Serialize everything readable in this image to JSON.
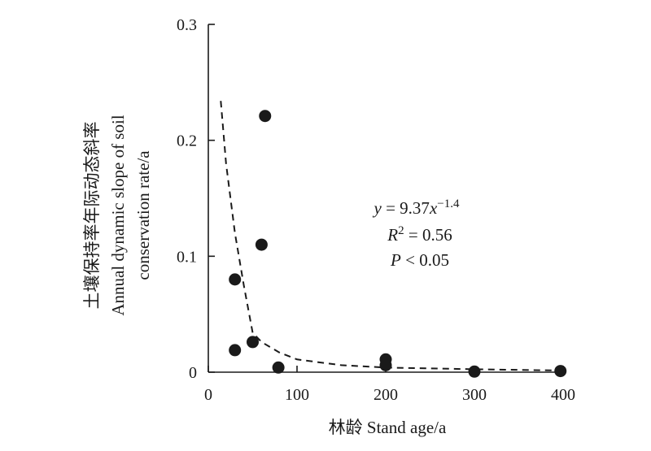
{
  "chart_data": {
    "type": "scatter",
    "xlabel": "林龄 Stand age/a",
    "ylabel_lines": [
      "土壤保持率年际动态斜率",
      "Annual dynamic slope of soil",
      "conservation rate/a"
    ],
    "xlim": [
      0,
      400
    ],
    "ylim": [
      0,
      0.3
    ],
    "xticks": [
      "0",
      "100",
      "200",
      "300",
      "400"
    ],
    "yticks": [
      "0",
      "0.1",
      "0.2",
      "0.3"
    ],
    "grid": false,
    "points": [
      {
        "x": 30,
        "y": 0.08
      },
      {
        "x": 30,
        "y": 0.019
      },
      {
        "x": 50,
        "y": 0.026
      },
      {
        "x": 60,
        "y": 0.11
      },
      {
        "x": 64,
        "y": 0.221
      },
      {
        "x": 79,
        "y": 0.004
      },
      {
        "x": 200,
        "y": 0.011
      },
      {
        "x": 200,
        "y": 0.006
      },
      {
        "x": 300,
        "y": 0.0005
      },
      {
        "x": 397,
        "y": 0.001
      }
    ],
    "fit": {
      "style": "dashed",
      "x_range": [
        14,
        395
      ],
      "points": [
        {
          "x": 14,
          "y": 0.234
        },
        {
          "x": 20,
          "y": 0.18
        },
        {
          "x": 30,
          "y": 0.12
        },
        {
          "x": 40,
          "y": 0.075
        },
        {
          "x": 50,
          "y": 0.034
        },
        {
          "x": 60,
          "y": 0.026
        },
        {
          "x": 80,
          "y": 0.017
        },
        {
          "x": 100,
          "y": 0.011
        },
        {
          "x": 150,
          "y": 0.006
        },
        {
          "x": 200,
          "y": 0.004
        },
        {
          "x": 300,
          "y": 0.0025
        },
        {
          "x": 395,
          "y": 0.0015
        }
      ]
    },
    "annotation": {
      "equation": {
        "y": "y",
        "eq": " = 9.37",
        "x": "x",
        "exp": "−1.4"
      },
      "r2": {
        "r": "R",
        "sup": "2",
        "rest": " = 0.56"
      },
      "p": {
        "p": "P",
        "rest": " < 0.05"
      }
    },
    "marker_color": "#1a1a1a"
  }
}
